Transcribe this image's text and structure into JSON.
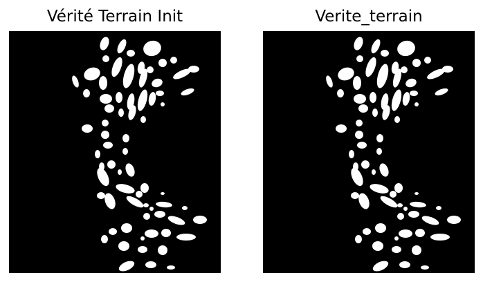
{
  "figure": {
    "background_color": "#ffffff",
    "mask_background_color": "#000000",
    "mask_foreground_color": "#ffffff",
    "panels": [
      {
        "title": "Vérité Terrain Init"
      },
      {
        "title": "Verite_terrain"
      }
    ]
  }
}
